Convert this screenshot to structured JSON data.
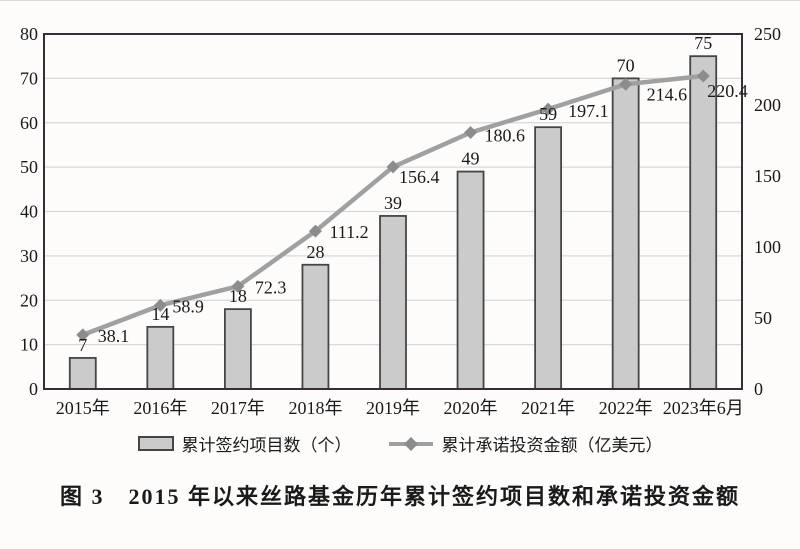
{
  "figure": {
    "caption": "图 3　2015 年以来丝路基金历年累计签约项目数和承诺投资金额"
  },
  "legend": {
    "bar_label": "累计签约项目数（个）",
    "line_label": "累计承诺投资金额（亿美元）"
  },
  "chart_data": {
    "type": "bar",
    "subtype": "bar+line combo, dual axis",
    "title": "",
    "categories": [
      "2015年",
      "2016年",
      "2017年",
      "2018年",
      "2019年",
      "2020年",
      "2021年",
      "2022年",
      "2023年6月"
    ],
    "series": [
      {
        "name": "累计签约项目数（个）",
        "type": "bar",
        "axis": "left",
        "values": [
          7,
          14,
          18,
          28,
          39,
          49,
          59,
          70,
          75
        ]
      },
      {
        "name": "累计承诺投资金额（亿美元）",
        "type": "line",
        "axis": "right",
        "marker": "diamond",
        "values": [
          38.1,
          58.9,
          72.3,
          111.2,
          156.4,
          180.6,
          197.1,
          214.6,
          220.4
        ]
      }
    ],
    "left_axis": {
      "min": 0,
      "max": 80,
      "step": 10
    },
    "right_axis": {
      "min": 0,
      "max": 250,
      "step": 50
    },
    "grid": "horizontal gridlines at left-axis steps",
    "legend_position": "bottom",
    "data_labels": true,
    "colors": {
      "bar_fill": "#cbcbcb",
      "bar_border": "#454545",
      "line": "#a0a0a0",
      "marker": "#8c8c8c",
      "grid": "#d8d8d8",
      "axis": "#363036",
      "text": "#1a1a1a"
    }
  }
}
